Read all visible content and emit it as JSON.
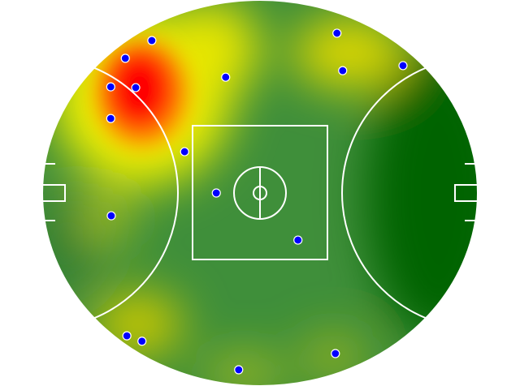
{
  "chart_data": {
    "type": "scatter",
    "color": "#0000ff",
    "x": [
      29.2,
      24.1,
      21.3,
      26.1,
      21.3,
      43.4,
      35.5,
      41.6,
      21.4,
      57.3,
      64.8,
      65.9,
      77.5,
      24.4,
      27.3,
      45.9,
      64.5
    ],
    "values": [
      89.5,
      84.9,
      77.5,
      77.3,
      69.3,
      80.0,
      60.7,
      50.0,
      44.1,
      37.8,
      91.4,
      81.7,
      83.0,
      13.0,
      11.6,
      4.2,
      8.4
    ],
    "xlim": [
      0,
      100
    ],
    "ylim": [
      0,
      100
    ]
  }
}
